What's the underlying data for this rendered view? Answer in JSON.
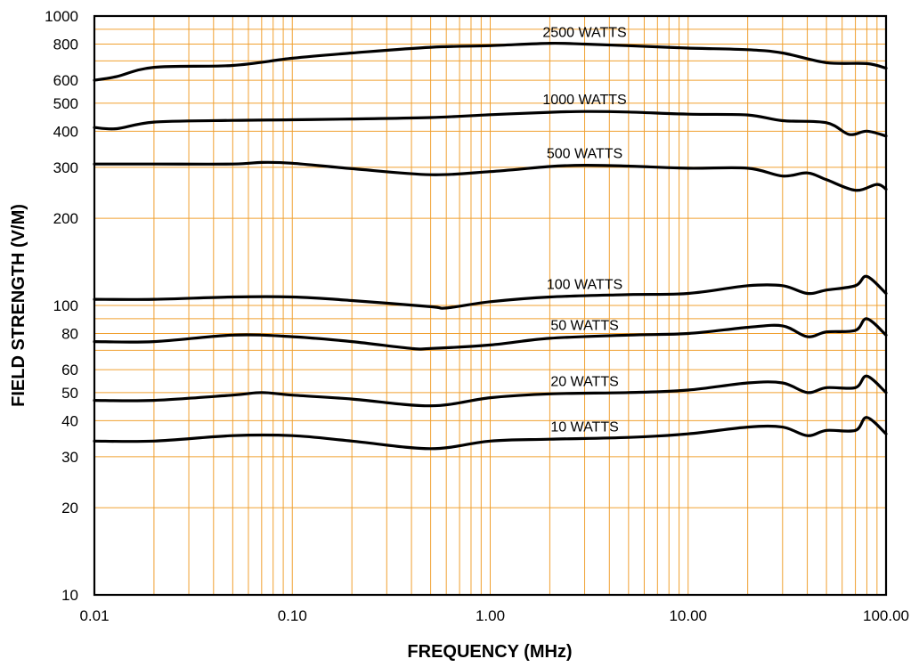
{
  "chart_data": {
    "type": "line",
    "title": "",
    "xlabel": "FREQUENCY (MHz)",
    "ylabel": "FIELD STRENGTH (V/M)",
    "x_scale": "log",
    "y_scale": "log",
    "xlim": [
      0.01,
      100
    ],
    "ylim": [
      10,
      1000
    ],
    "grid": true,
    "grid_color": "#f0a030",
    "line_color": "#000000",
    "x_ticks": [
      {
        "value": 0.01,
        "label": "0.01"
      },
      {
        "value": 0.1,
        "label": "0.10"
      },
      {
        "value": 1,
        "label": "1.00"
      },
      {
        "value": 10,
        "label": "10.00"
      },
      {
        "value": 100,
        "label": "100.00"
      }
    ],
    "y_ticks": [
      {
        "value": 10,
        "label": "10"
      },
      {
        "value": 20,
        "label": "20"
      },
      {
        "value": 30,
        "label": "30"
      },
      {
        "value": 40,
        "label": "40"
      },
      {
        "value": 50,
        "label": "50"
      },
      {
        "value": 60,
        "label": "60"
      },
      {
        "value": 80,
        "label": "80"
      },
      {
        "value": 100,
        "label": "100"
      },
      {
        "value": 200,
        "label": "200"
      },
      {
        "value": 300,
        "label": "300"
      },
      {
        "value": 400,
        "label": "400"
      },
      {
        "value": 500,
        "label": "500"
      },
      {
        "value": 600,
        "label": "600"
      },
      {
        "value": 800,
        "label": "800"
      },
      {
        "value": 1000,
        "label": "1000"
      }
    ],
    "series": [
      {
        "name": "2500 WATTS",
        "label_x": 3.0,
        "points": [
          [
            0.01,
            600
          ],
          [
            0.013,
            618
          ],
          [
            0.02,
            665
          ],
          [
            0.05,
            675
          ],
          [
            0.1,
            715
          ],
          [
            0.2,
            745
          ],
          [
            0.5,
            780
          ],
          [
            1,
            790
          ],
          [
            2,
            805
          ],
          [
            3,
            800
          ],
          [
            5,
            790
          ],
          [
            10,
            775
          ],
          [
            20,
            765
          ],
          [
            30,
            745
          ],
          [
            50,
            690
          ],
          [
            80,
            685
          ],
          [
            100,
            660
          ]
        ]
      },
      {
        "name": "1000 WATTS",
        "label_x": 3.0,
        "points": [
          [
            0.01,
            412
          ],
          [
            0.013,
            408
          ],
          [
            0.02,
            430
          ],
          [
            0.05,
            436
          ],
          [
            0.1,
            438
          ],
          [
            0.2,
            441
          ],
          [
            0.5,
            446
          ],
          [
            1,
            456
          ],
          [
            2,
            465
          ],
          [
            3,
            468
          ],
          [
            5,
            466
          ],
          [
            10,
            458
          ],
          [
            20,
            455
          ],
          [
            30,
            435
          ],
          [
            50,
            428
          ],
          [
            65,
            390
          ],
          [
            80,
            400
          ],
          [
            100,
            385
          ]
        ]
      },
      {
        "name": "500 WATTS",
        "label_x": 3.0,
        "points": [
          [
            0.01,
            308
          ],
          [
            0.02,
            308
          ],
          [
            0.05,
            308
          ],
          [
            0.07,
            312
          ],
          [
            0.1,
            310
          ],
          [
            0.2,
            297
          ],
          [
            0.5,
            283
          ],
          [
            1,
            290
          ],
          [
            2,
            302
          ],
          [
            3,
            305
          ],
          [
            5,
            303
          ],
          [
            10,
            298
          ],
          [
            20,
            298
          ],
          [
            30,
            280
          ],
          [
            40,
            287
          ],
          [
            50,
            272
          ],
          [
            70,
            250
          ],
          [
            90,
            262
          ],
          [
            100,
            252
          ]
        ]
      },
      {
        "name": "100 WATTS",
        "label_x": 3.0,
        "points": [
          [
            0.01,
            105
          ],
          [
            0.02,
            105
          ],
          [
            0.05,
            107
          ],
          [
            0.1,
            107
          ],
          [
            0.2,
            104
          ],
          [
            0.5,
            99
          ],
          [
            0.6,
            98
          ],
          [
            1,
            103
          ],
          [
            2,
            107
          ],
          [
            5,
            109
          ],
          [
            10,
            110
          ],
          [
            20,
            117
          ],
          [
            30,
            117
          ],
          [
            40,
            110
          ],
          [
            50,
            113
          ],
          [
            70,
            117
          ],
          [
            80,
            126
          ],
          [
            100,
            110
          ]
        ]
      },
      {
        "name": "50 WATTS",
        "label_x": 3.0,
        "points": [
          [
            0.01,
            75
          ],
          [
            0.02,
            75
          ],
          [
            0.05,
            79
          ],
          [
            0.1,
            78
          ],
          [
            0.2,
            75
          ],
          [
            0.4,
            71
          ],
          [
            0.5,
            71
          ],
          [
            1,
            73
          ],
          [
            2,
            77
          ],
          [
            5,
            79
          ],
          [
            10,
            80
          ],
          [
            20,
            84
          ],
          [
            30,
            85
          ],
          [
            40,
            78
          ],
          [
            50,
            81
          ],
          [
            70,
            82
          ],
          [
            80,
            90
          ],
          [
            100,
            79
          ]
        ]
      },
      {
        "name": "20 WATTS",
        "label_x": 3.0,
        "points": [
          [
            0.01,
            47
          ],
          [
            0.02,
            47
          ],
          [
            0.05,
            49
          ],
          [
            0.07,
            50
          ],
          [
            0.1,
            49
          ],
          [
            0.2,
            47.5
          ],
          [
            0.5,
            45
          ],
          [
            1,
            48
          ],
          [
            2,
            49.5
          ],
          [
            5,
            50
          ],
          [
            10,
            51
          ],
          [
            20,
            54
          ],
          [
            30,
            54
          ],
          [
            40,
            50
          ],
          [
            50,
            52
          ],
          [
            70,
            52
          ],
          [
            80,
            57
          ],
          [
            100,
            50
          ]
        ]
      },
      {
        "name": "10 WATTS",
        "label_x": 3.0,
        "points": [
          [
            0.01,
            34
          ],
          [
            0.02,
            34
          ],
          [
            0.05,
            35.5
          ],
          [
            0.1,
            35.5
          ],
          [
            0.2,
            34
          ],
          [
            0.5,
            32
          ],
          [
            1,
            34
          ],
          [
            2,
            34.5
          ],
          [
            5,
            35
          ],
          [
            10,
            36
          ],
          [
            20,
            38
          ],
          [
            30,
            38
          ],
          [
            40,
            35.5
          ],
          [
            50,
            37
          ],
          [
            70,
            37
          ],
          [
            80,
            41
          ],
          [
            100,
            36
          ]
        ]
      }
    ]
  }
}
